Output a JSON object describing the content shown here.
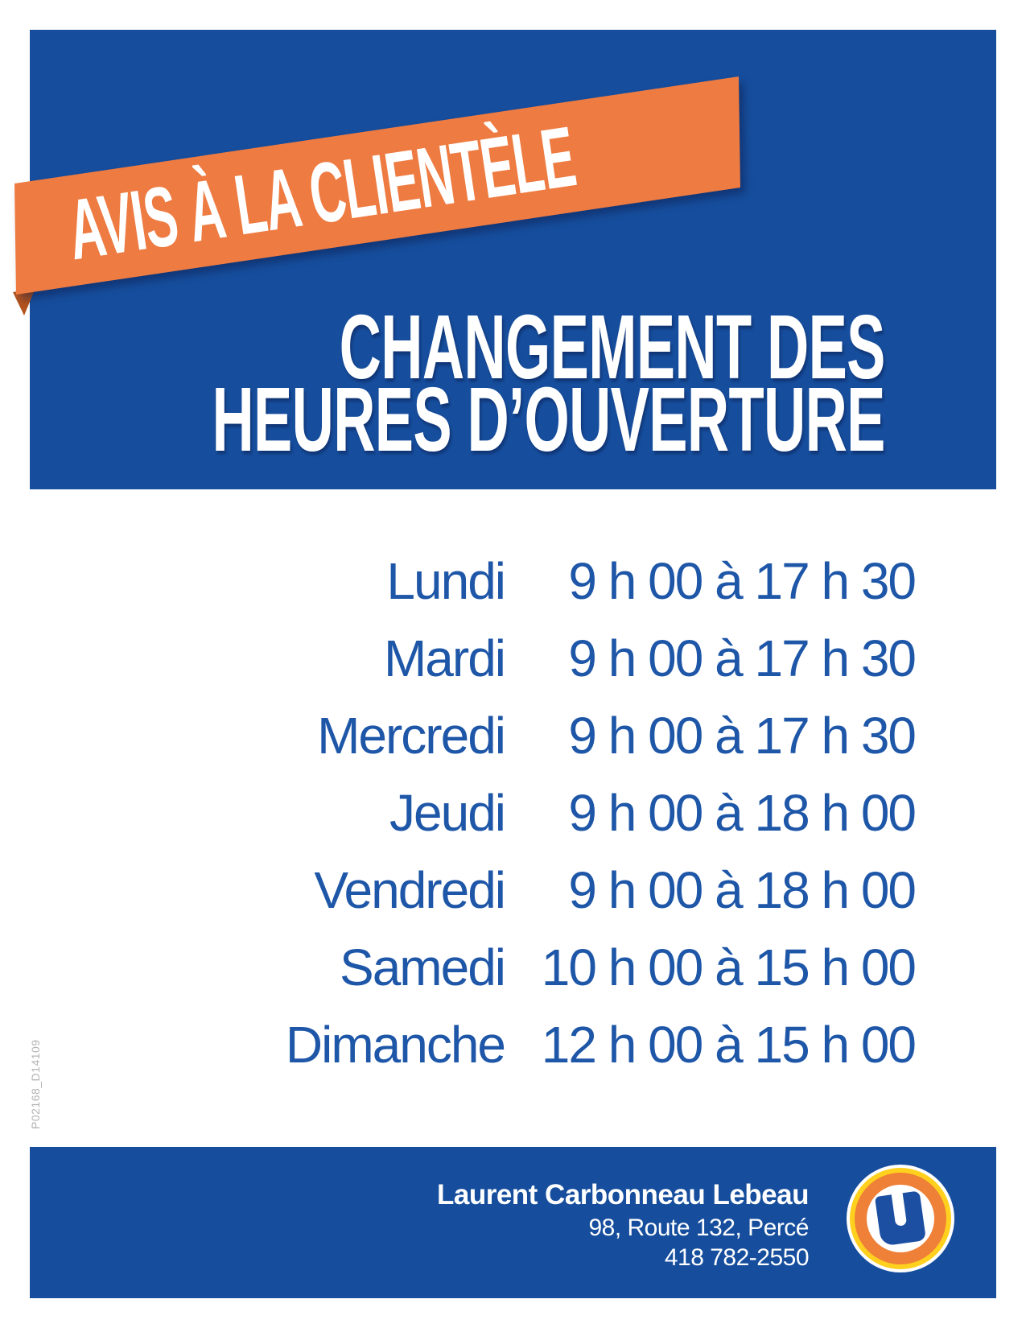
{
  "colors": {
    "panel_blue": "#164E9D",
    "schedule_text_blue": "#1E56A8",
    "ribbon_orange": "#EE7B41",
    "ribbon_fold_orange": "#B4541E",
    "logo_ring_orange": "#EE8038",
    "logo_ring_yellow": "#FFD01E",
    "text_white": "#ffffff",
    "code_gray": "#b3b3b3"
  },
  "ribbon": {
    "label": "AVIS À LA CLIENTÈLE"
  },
  "title": {
    "line1": "CHANGEMENT DES",
    "line2": "HEURES D’OUVERTURE"
  },
  "schedule": {
    "rows": [
      {
        "day": "Lundi",
        "hours": "9 h 00 à 17 h 30"
      },
      {
        "day": "Mardi",
        "hours": "9 h 00 à 17 h 30"
      },
      {
        "day": "Mercredi",
        "hours": "9 h 00 à 17 h 30"
      },
      {
        "day": "Jeudi",
        "hours": "9 h 00 à 18 h 00"
      },
      {
        "day": "Vendredi",
        "hours": "9 h 00 à 18 h 00"
      },
      {
        "day": "Samedi",
        "hours": "10 h 00 à 15 h 00"
      },
      {
        "day": "Dimanche",
        "hours": "12 h 00 à 15 h 00"
      }
    ]
  },
  "production_code": "P02168_D14109",
  "footer": {
    "name": "Laurent Carbonneau Lebeau",
    "address": "98, Route 132, Percé",
    "phone": "418 782-2550",
    "logo_icon": "u-mark"
  }
}
